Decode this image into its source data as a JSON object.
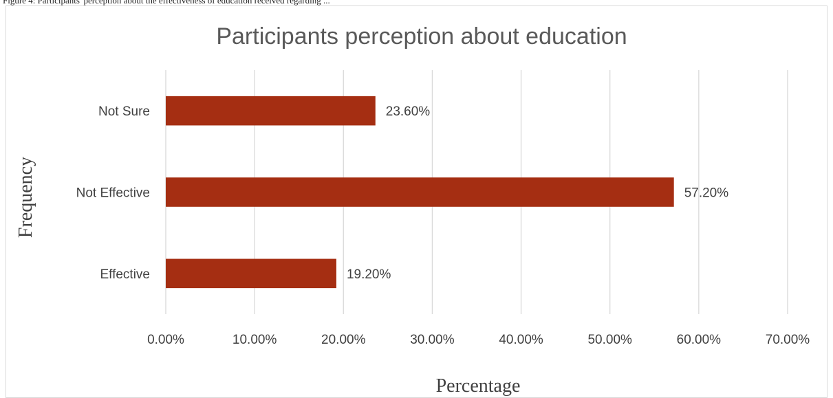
{
  "caption": "Figure 4: Participants' perception about the effectiveness of education received regarding ...",
  "chart_data": {
    "type": "bar",
    "orientation": "horizontal",
    "title": "Participants perception about education",
    "xlabel": "Percentage",
    "ylabel": "Frequency",
    "categories": [
      "Not Sure",
      "Not Effective",
      "Effective"
    ],
    "values": [
      23.6,
      57.2,
      19.2
    ],
    "data_labels": [
      "23.60%",
      "57.20%",
      "19.20%"
    ],
    "xlim": [
      0,
      70
    ],
    "xticks": [
      "0.00%",
      "10.00%",
      "20.00%",
      "30.00%",
      "40.00%",
      "50.00%",
      "60.00%",
      "70.00%"
    ],
    "grid": "vertical",
    "bar_color": "#a52e12",
    "grid_color": "#d9d9d9"
  }
}
